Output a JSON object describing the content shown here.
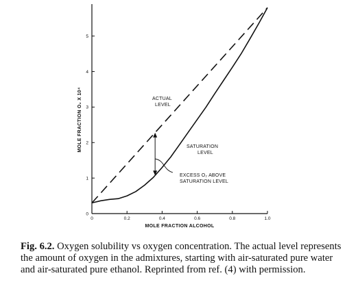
{
  "chart_data": {
    "type": "line",
    "xlabel": "MOLE FRACTION ALCOHOL",
    "ylabel": "MOLE FRACTION O₂ X 10⁴",
    "xlim": [
      0,
      1.0
    ],
    "ylim": [
      0,
      5.9
    ],
    "xticks": [
      "0",
      "0.2",
      "0.4",
      "0.6",
      "0.8",
      "1.0"
    ],
    "yticks": [
      "0",
      "1",
      "2",
      "3",
      "4",
      "5"
    ],
    "series": [
      {
        "name": "ACTUAL LEVEL",
        "style": "dashed",
        "x": [
          0,
          1.0
        ],
        "y": [
          0.3,
          5.8
        ]
      },
      {
        "name": "SATURATION LEVEL",
        "style": "solid",
        "x": [
          0,
          0.05,
          0.1,
          0.15,
          0.2,
          0.25,
          0.3,
          0.35,
          0.4,
          0.45,
          0.5,
          0.55,
          0.6,
          0.65,
          0.7,
          0.75,
          0.8,
          0.85,
          0.9,
          0.95,
          1.0
        ],
        "y": [
          0.3,
          0.36,
          0.4,
          0.42,
          0.5,
          0.62,
          0.8,
          1.02,
          1.3,
          1.6,
          1.95,
          2.3,
          2.65,
          3.0,
          3.38,
          3.75,
          4.12,
          4.5,
          4.92,
          5.35,
          5.8
        ]
      }
    ],
    "annotations": {
      "actual_level": [
        "ACTUAL",
        "LEVEL"
      ],
      "saturation_level": [
        "SATURATION",
        "LEVEL"
      ],
      "excess": [
        "EXCESS O₂ ABOVE",
        "SATURATION LEVEL"
      ]
    },
    "arrow_x": 0.36,
    "grid": false
  },
  "caption": {
    "label": "Fig. 6.2.",
    "text": "Oxygen solubility vs oxygen concentration. The actual level represents the amount of oxygen in the admixtures, starting with air-saturated pure water and air-saturated pure ethanol. Reprinted from ref. (4) with permission."
  }
}
